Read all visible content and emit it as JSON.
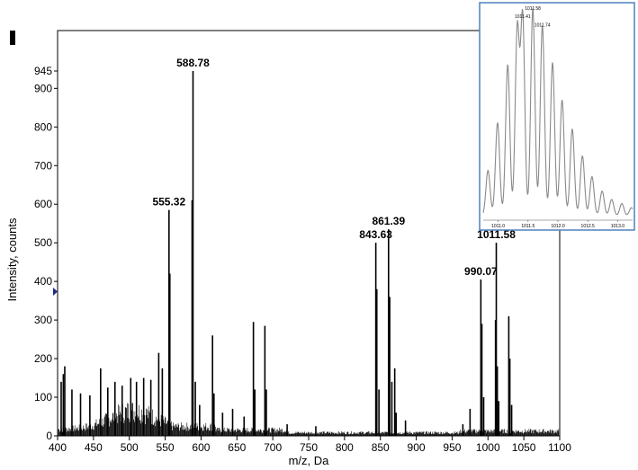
{
  "chart_data": [
    {
      "type": "line",
      "xlabel": "m/z, Da",
      "ylabel": "Intensity, counts",
      "xlim": [
        400,
        1100
      ],
      "ylim": [
        0,
        945
      ],
      "x_ticks": [
        400,
        450,
        500,
        550,
        600,
        650,
        700,
        750,
        800,
        850,
        900,
        950,
        1000,
        1050,
        1100
      ],
      "x_tick_labels": [
        "400",
        "450",
        "500",
        "550",
        "600",
        "650",
        "700",
        "750",
        "800",
        "850",
        "900",
        "950",
        "1000",
        "1050",
        "1100"
      ],
      "y_ticks": [
        0,
        100,
        200,
        300,
        400,
        500,
        600,
        700,
        800,
        900,
        945
      ],
      "y_tick_labels": [
        "0",
        "100",
        "200",
        "300",
        "400",
        "500",
        "600",
        "700",
        "800",
        "900",
        "945"
      ],
      "grid": false,
      "peaks": [
        {
          "x": 405,
          "y": 140
        },
        {
          "x": 408,
          "y": 160
        },
        {
          "x": 410,
          "y": 180
        },
        {
          "x": 420,
          "y": 120
        },
        {
          "x": 432,
          "y": 110
        },
        {
          "x": 445,
          "y": 105
        },
        {
          "x": 460,
          "y": 175
        },
        {
          "x": 470,
          "y": 125
        },
        {
          "x": 480,
          "y": 140
        },
        {
          "x": 490,
          "y": 130
        },
        {
          "x": 502,
          "y": 150
        },
        {
          "x": 510,
          "y": 140
        },
        {
          "x": 520,
          "y": 150
        },
        {
          "x": 530,
          "y": 145
        },
        {
          "x": 541,
          "y": 215
        },
        {
          "x": 546,
          "y": 175
        },
        {
          "x": 555.32,
          "y": 585
        },
        {
          "x": 556.5,
          "y": 420
        },
        {
          "x": 588.78,
          "y": 945
        },
        {
          "x": 587.5,
          "y": 610
        },
        {
          "x": 592,
          "y": 140
        },
        {
          "x": 598,
          "y": 80
        },
        {
          "x": 616,
          "y": 260
        },
        {
          "x": 618,
          "y": 110
        },
        {
          "x": 630,
          "y": 60
        },
        {
          "x": 644,
          "y": 70
        },
        {
          "x": 660,
          "y": 50
        },
        {
          "x": 673,
          "y": 295
        },
        {
          "x": 675,
          "y": 120
        },
        {
          "x": 689,
          "y": 285
        },
        {
          "x": 691,
          "y": 120
        },
        {
          "x": 720,
          "y": 30
        },
        {
          "x": 760,
          "y": 25
        },
        {
          "x": 843.63,
          "y": 500
        },
        {
          "x": 845,
          "y": 380
        },
        {
          "x": 848,
          "y": 120
        },
        {
          "x": 861.39,
          "y": 535
        },
        {
          "x": 863,
          "y": 360
        },
        {
          "x": 866,
          "y": 140
        },
        {
          "x": 870,
          "y": 175
        },
        {
          "x": 872,
          "y": 60
        },
        {
          "x": 885,
          "y": 40
        },
        {
          "x": 965,
          "y": 30
        },
        {
          "x": 975,
          "y": 70
        },
        {
          "x": 990.07,
          "y": 405
        },
        {
          "x": 991.5,
          "y": 290
        },
        {
          "x": 994,
          "y": 100
        },
        {
          "x": 1011.58,
          "y": 500
        },
        {
          "x": 1010.5,
          "y": 300
        },
        {
          "x": 1013,
          "y": 180
        },
        {
          "x": 1015,
          "y": 90
        },
        {
          "x": 1029,
          "y": 310
        },
        {
          "x": 1030.5,
          "y": 200
        },
        {
          "x": 1033,
          "y": 80
        }
      ],
      "peak_labels": [
        {
          "x": 588.78,
          "y": 945,
          "text": "588.78"
        },
        {
          "x": 555.32,
          "y": 585,
          "text": "555.32"
        },
        {
          "x": 843.63,
          "y": 500,
          "text": "843.63"
        },
        {
          "x": 861.39,
          "y": 535,
          "text": "861.39"
        },
        {
          "x": 990.07,
          "y": 405,
          "text": "990.07"
        },
        {
          "x": 1011.58,
          "y": 500,
          "text": "1011.58"
        }
      ]
    },
    {
      "type": "line",
      "xlim": [
        1010.75,
        1013.25
      ],
      "x_ticks": [
        1011.0,
        1011.5,
        1012.0,
        1012.5,
        1013.0
      ],
      "x_tick_labels": [
        "1011.0",
        "1011.5",
        "1012.0",
        "1012.5",
        "1013.0"
      ],
      "peaks": [
        {
          "x": 1010.83,
          "y": 0.22
        },
        {
          "x": 1010.99,
          "y": 0.45
        },
        {
          "x": 1011.16,
          "y": 0.73
        },
        {
          "x": 1011.32,
          "y": 0.9
        },
        {
          "x": 1011.41,
          "y": 0.96
        },
        {
          "x": 1011.58,
          "y": 1.0
        },
        {
          "x": 1011.74,
          "y": 0.92
        },
        {
          "x": 1011.91,
          "y": 0.74
        },
        {
          "x": 1012.07,
          "y": 0.56
        },
        {
          "x": 1012.24,
          "y": 0.42
        },
        {
          "x": 1012.41,
          "y": 0.29
        },
        {
          "x": 1012.57,
          "y": 0.19
        },
        {
          "x": 1012.74,
          "y": 0.12
        },
        {
          "x": 1012.9,
          "y": 0.08
        },
        {
          "x": 1013.07,
          "y": 0.06
        },
        {
          "x": 1013.23,
          "y": 0.04
        }
      ],
      "peak_labels": [
        {
          "x": 1011.41,
          "y": 0.96,
          "text": "1011.41"
        },
        {
          "x": 1011.58,
          "y": 1.0,
          "text": "1011.58"
        },
        {
          "x": 1011.74,
          "y": 0.92,
          "text": "1011.74"
        }
      ]
    }
  ],
  "colors": {
    "spectrum": "#000000",
    "inset_border": "#4f81bd",
    "inset_line": "#8a8a8a",
    "marker": "#1f2a8a"
  }
}
